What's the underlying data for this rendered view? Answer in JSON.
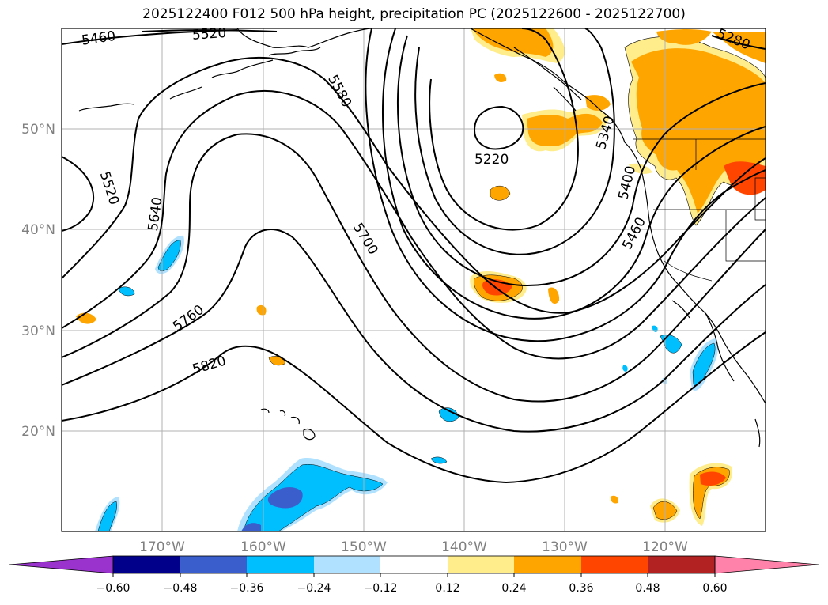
{
  "title": "2025122400 F012 500 hPa height, precipitation PC (2025122600 - 2025122700)",
  "lat_labels": [
    "50°N",
    "40°N",
    "30°N",
    "20°N"
  ],
  "lon_labels": [
    "170°W",
    "160°W",
    "150°W",
    "140°W",
    "130°W",
    "120°W"
  ],
  "contour_labels": [
    "5460",
    "5520",
    "5580",
    "5520",
    "5640",
    "5700",
    "5760",
    "5820",
    "5220",
    "5400",
    "5460",
    "5280",
    "5340"
  ],
  "colorbar": {
    "ticks": [
      "−0.60",
      "−0.48",
      "−0.36",
      "−0.24",
      "−0.12",
      "0.12",
      "0.24",
      "0.36",
      "0.48",
      "0.60"
    ],
    "colors": [
      "#9a32cd",
      "#00008b",
      "#3a5fcd",
      "#00bfff",
      "#b0e2ff",
      "#ffffff",
      "#ffec8b",
      "#ffa500",
      "#ff4500",
      "#b22222",
      "#ff82ab"
    ]
  },
  "legend": {
    "positive_colors": [
      "#ffec8b",
      "#ffa500",
      "#ff4500"
    ],
    "negative_colors": [
      "#b0e2ff",
      "#00bfff",
      "#3a5fcd"
    ]
  }
}
